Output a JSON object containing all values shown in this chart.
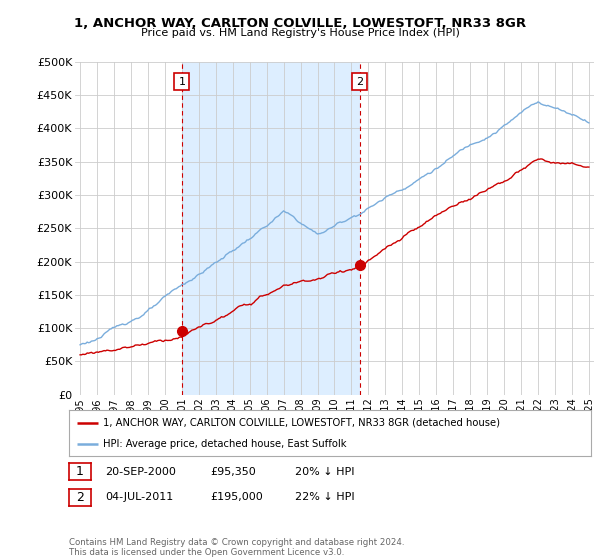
{
  "title": "1, ANCHOR WAY, CARLTON COLVILLE, LOWESTOFT, NR33 8GR",
  "subtitle": "Price paid vs. HM Land Registry's House Price Index (HPI)",
  "ylabel_ticks": [
    "£0",
    "£50K",
    "£100K",
    "£150K",
    "£200K",
    "£250K",
    "£300K",
    "£350K",
    "£400K",
    "£450K",
    "£500K"
  ],
  "ytick_values": [
    0,
    50000,
    100000,
    150000,
    200000,
    250000,
    300000,
    350000,
    400000,
    450000,
    500000
  ],
  "ylim": [
    0,
    500000
  ],
  "hpi_color": "#7aaddc",
  "hpi_fill_color": "#ddeeff",
  "price_color": "#cc0000",
  "ann_box_color": "#cc0000",
  "ann1_x": 2001.0,
  "ann1_y_dot": 95350,
  "ann2_x": 2011.5,
  "ann2_y_dot": 195000,
  "shade_x1": 2001.0,
  "shade_x2": 2011.5,
  "legend_line1": "1, ANCHOR WAY, CARLTON COLVILLE, LOWESTOFT, NR33 8GR (detached house)",
  "legend_line2": "HPI: Average price, detached house, East Suffolk",
  "table_row1": [
    "1",
    "20-SEP-2000",
    "£95,350",
    "20% ↓ HPI"
  ],
  "table_row2": [
    "2",
    "04-JUL-2011",
    "£195,000",
    "22% ↓ HPI"
  ],
  "footnote": "Contains HM Land Registry data © Crown copyright and database right 2024.\nThis data is licensed under the Open Government Licence v3.0.",
  "background_color": "#ffffff",
  "grid_color": "#cccccc",
  "xmin": 1995,
  "xmax": 2025
}
